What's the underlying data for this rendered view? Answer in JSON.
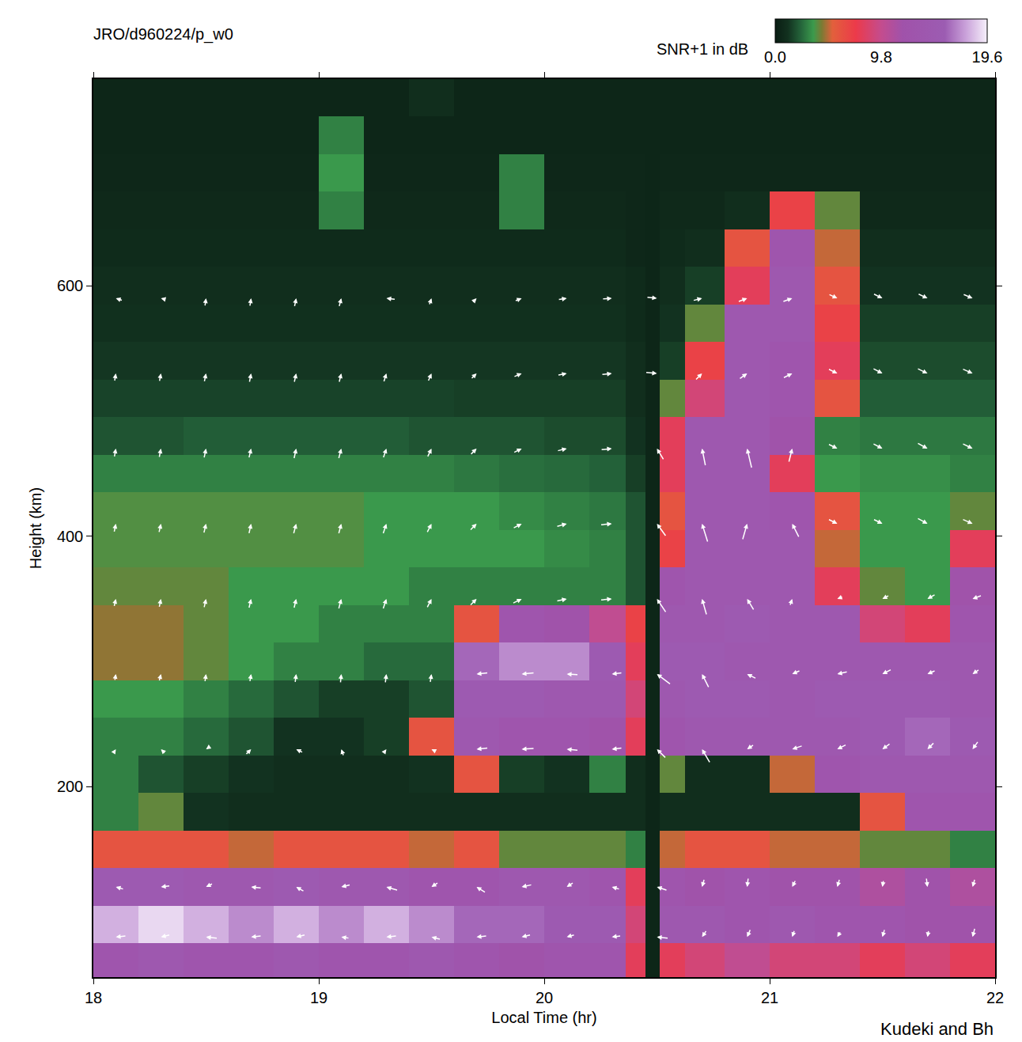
{
  "chart_data": {
    "type": "heatmap",
    "title": "JRO/d960224/p_w0",
    "x_label": "Local Time (hr)",
    "y_label": "Height (km)",
    "source": "Kudeki and Bh",
    "xlim": [
      18,
      22
    ],
    "xticks": [
      18,
      19,
      20,
      21,
      22
    ],
    "ylim": [
      48,
      765
    ],
    "yticks": [
      200,
      400,
      600
    ],
    "colorbar": {
      "title": "SNR+1 in dB",
      "range": [
        0,
        19.6
      ],
      "ticks": [
        {
          "value": 0,
          "label": "0.0"
        },
        9.8,
        19.6
      ]
    },
    "x": [
      18.1,
      18.3,
      18.5,
      18.7,
      18.9,
      19.1,
      19.3,
      19.5,
      19.7,
      19.9,
      20.1,
      20.3,
      20.42,
      20.475,
      20.55,
      20.7,
      20.9,
      21.1,
      21.3,
      21.5,
      21.7,
      21.9
    ],
    "y": [
      60,
      90,
      120,
      150,
      180,
      210,
      240,
      270,
      300,
      330,
      360,
      390,
      420,
      450,
      480,
      510,
      540,
      570,
      600,
      630,
      660,
      690,
      720,
      750
    ],
    "z": [
      [
        13,
        14,
        13,
        13,
        14,
        13,
        13,
        14,
        13,
        12,
        13,
        13,
        8,
        0.5,
        8,
        9,
        10,
        9,
        9,
        8,
        9,
        8
      ],
      [
        18,
        19,
        18,
        17,
        18,
        17,
        18,
        17,
        16,
        16,
        15,
        15,
        9,
        0.5,
        14,
        14,
        13,
        14,
        13,
        13,
        12,
        12
      ],
      [
        15,
        15,
        14,
        14,
        15,
        14,
        14,
        13,
        13,
        14,
        14,
        13,
        8,
        0.5,
        13,
        12,
        13,
        12,
        12,
        11,
        12,
        11
      ],
      [
        6,
        6,
        6,
        5,
        6,
        6,
        6,
        5,
        6,
        4,
        4,
        4,
        3,
        0.5,
        5,
        6,
        6,
        5,
        5,
        4,
        4,
        3
      ],
      [
        3,
        4,
        1.2,
        1,
        1,
        1,
        1,
        1,
        1,
        1,
        1,
        1,
        1,
        0.5,
        1,
        1,
        1,
        1,
        1,
        6,
        13,
        13
      ],
      [
        3,
        2,
        1.5,
        1.2,
        1,
        1,
        1,
        1.2,
        6,
        1.5,
        1.2,
        3,
        1,
        0.5,
        4,
        1,
        1,
        5,
        13,
        14,
        14,
        14
      ],
      [
        3,
        3,
        2.5,
        2,
        1.2,
        1.2,
        1.5,
        6,
        14,
        13,
        13,
        12,
        8,
        0.5,
        13,
        14,
        14,
        14,
        14,
        15,
        16,
        15
      ],
      [
        3.5,
        3.5,
        3,
        2.5,
        2,
        1.5,
        1.5,
        2,
        15,
        15,
        14,
        14,
        9,
        0.5,
        14,
        15,
        15,
        14,
        15,
        15,
        15,
        14
      ],
      [
        4.5,
        4.5,
        4,
        3.5,
        3,
        3,
        2.5,
        2.5,
        16,
        17,
        17,
        15,
        8,
        0.5,
        15,
        15,
        14,
        14,
        14,
        14,
        14,
        14
      ],
      [
        4.5,
        4.5,
        4,
        3.5,
        3.5,
        3,
        3,
        3,
        6,
        13,
        12,
        10,
        7,
        0.5,
        14,
        14,
        15,
        14,
        14,
        9,
        8,
        13
      ],
      [
        4,
        4,
        4,
        3.5,
        3.5,
        3.5,
        3.5,
        3,
        3,
        3,
        3,
        3,
        2,
        0.5,
        13,
        14,
        14,
        14,
        8,
        4,
        3.5,
        12
      ],
      [
        3.8,
        3.8,
        3.8,
        3.8,
        3.8,
        3.8,
        3.5,
        3.5,
        3.5,
        3.5,
        3.2,
        3,
        2,
        0.5,
        7,
        14,
        14,
        14,
        5,
        3.5,
        3.5,
        8
      ],
      [
        3.8,
        3.8,
        3.8,
        3.8,
        3.8,
        3.8,
        3.5,
        3.5,
        3.5,
        3.2,
        3,
        2.8,
        2,
        0.5,
        6,
        14,
        14,
        13,
        6,
        3.5,
        3.5,
        4
      ],
      [
        3,
        3,
        3,
        3,
        3,
        3,
        3,
        3,
        2.8,
        2.6,
        2.5,
        2.3,
        1.5,
        0.5,
        8,
        14,
        14,
        8,
        3.5,
        3.3,
        3.3,
        3
      ],
      [
        2,
        2,
        2.2,
        2.2,
        2.2,
        2.2,
        2.2,
        2,
        2,
        2,
        1.8,
        1.8,
        1.2,
        0.5,
        8,
        14,
        14,
        12,
        3,
        2.8,
        2.8,
        2.8
      ],
      [
        1.6,
        1.6,
        1.6,
        1.6,
        1.6,
        1.6,
        1.6,
        1.6,
        1.5,
        1.5,
        1.5,
        1.5,
        1,
        0.5,
        4,
        9,
        14,
        13,
        6,
        2.2,
        2.2,
        2.2
      ],
      [
        1.3,
        1.3,
        1.3,
        1.3,
        1.3,
        1.3,
        1.3,
        1.3,
        1.3,
        1.3,
        1.3,
        1.3,
        1,
        0.5,
        1.5,
        7,
        14,
        13,
        8,
        1.8,
        1.8,
        1.8
      ],
      [
        1.1,
        1.1,
        1.1,
        1.1,
        1.1,
        1.1,
        1.1,
        1.1,
        1.1,
        1.1,
        1.1,
        1.1,
        0.8,
        0.5,
        1.2,
        4,
        14,
        14,
        7,
        1.5,
        1.5,
        1.5
      ],
      [
        1,
        1,
        1,
        1,
        1,
        1,
        1,
        1,
        1,
        1,
        1,
        1,
        0.8,
        0.5,
        1,
        1.5,
        8,
        14,
        6,
        1.2,
        1.2,
        1.2
      ],
      [
        0.8,
        0.8,
        0.8,
        0.8,
        0.8,
        0.8,
        0.8,
        0.8,
        0.8,
        0.8,
        0.8,
        0.8,
        0.6,
        0.5,
        0.8,
        1,
        6,
        13,
        5,
        1,
        1,
        1
      ],
      [
        0.7,
        0.7,
        0.7,
        0.7,
        0.7,
        3,
        0.7,
        0.7,
        0.7,
        3,
        0.7,
        0.7,
        0.6,
        0.5,
        0.7,
        0.7,
        1,
        7,
        4,
        0.7,
        0.7,
        0.7
      ],
      [
        0.6,
        0.6,
        0.6,
        0.6,
        0.6,
        3.5,
        0.6,
        0.6,
        0.6,
        3,
        0.6,
        0.6,
        0.6,
        0.5,
        0.6,
        0.6,
        0.6,
        0.6,
        0.6,
        0.6,
        0.6,
        0.6
      ],
      [
        0.5,
        0.5,
        0.5,
        0.5,
        0.5,
        3,
        0.5,
        0.5,
        0.5,
        0.5,
        0.5,
        0.5,
        0.5,
        0.5,
        0.5,
        0.5,
        0.5,
        0.5,
        0.5,
        0.5,
        0.5,
        0.5
      ],
      [
        0.5,
        0.5,
        0.5,
        0.5,
        0.5,
        0.5,
        0.5,
        1,
        0.5,
        0.5,
        0.5,
        0.5,
        0.5,
        0.5,
        0.5,
        0.5,
        0.5,
        0.5,
        0.5,
        0.5,
        0.5,
        0.5
      ]
    ],
    "vectors": {
      "x": [
        18.1,
        18.3,
        18.5,
        18.7,
        18.9,
        19.1,
        19.3,
        19.5,
        19.7,
        19.9,
        20.1,
        20.3,
        20.5,
        20.7,
        20.9,
        21.1,
        21.3,
        21.5,
        21.7,
        21.9
      ],
      "y": [
        80,
        120,
        230,
        290,
        350,
        410,
        470,
        530,
        590
      ],
      "u": [
        [
          -45,
          -40,
          -50,
          -45,
          -40,
          -35,
          -45,
          -40,
          -45,
          -40,
          -35,
          -40,
          -50,
          -20,
          -15,
          -10,
          -15,
          -10,
          -5,
          -10
        ],
        [
          -35,
          -40,
          -30,
          -45,
          -35,
          -40,
          -50,
          -30,
          -40,
          -45,
          -30,
          -35,
          -45,
          -10,
          -5,
          -15,
          -10,
          -5,
          5,
          -10
        ],
        [
          10,
          -20,
          -15,
          25,
          -30,
          -10,
          15,
          -20,
          -50,
          -55,
          -50,
          -45,
          -40,
          -35,
          -30,
          -45,
          -40,
          -35,
          -30,
          -25
        ],
        [
          5,
          8,
          5,
          6,
          5,
          4,
          5,
          6,
          -50,
          -55,
          -50,
          -45,
          -60,
          -30,
          -40,
          -35,
          -45,
          -40,
          -35,
          -30
        ],
        [
          8,
          8,
          9,
          10,
          10,
          12,
          15,
          20,
          30,
          40,
          45,
          50,
          -40,
          -20,
          -30,
          10,
          -25,
          -30,
          -35,
          -40
        ],
        [
          8,
          9,
          10,
          10,
          12,
          12,
          15,
          20,
          30,
          38,
          45,
          50,
          -40,
          -25,
          20,
          -30,
          40,
          40,
          45,
          45
        ],
        [
          7,
          8,
          9,
          10,
          10,
          12,
          14,
          18,
          28,
          36,
          42,
          48,
          -30,
          -15,
          -20,
          15,
          40,
          42,
          45,
          45
        ],
        [
          6,
          7,
          8,
          8,
          9,
          10,
          12,
          15,
          25,
          35,
          40,
          45,
          50,
          30,
          35,
          40,
          40,
          42,
          45,
          45
        ],
        [
          -30,
          -20,
          5,
          6,
          8,
          10,
          -40,
          10,
          20,
          30,
          38,
          42,
          45,
          40,
          40,
          42,
          38,
          40,
          42,
          42
        ]
      ],
      "w": [
        [
          -5,
          -10,
          5,
          -5,
          -10,
          5,
          -5,
          10,
          -5,
          -10,
          -10,
          -5,
          5,
          -30,
          -35,
          -30,
          -25,
          -35,
          -30,
          -40
        ],
        [
          10,
          -5,
          -15,
          5,
          20,
          -10,
          15,
          -20,
          25,
          -10,
          -20,
          10,
          15,
          -35,
          -40,
          -30,
          -35,
          -30,
          -40,
          -35
        ],
        [
          15,
          20,
          -10,
          25,
          15,
          30,
          20,
          10,
          -5,
          -3,
          5,
          -5,
          40,
          60,
          -20,
          -15,
          -20,
          -25,
          -30,
          -35
        ],
        [
          30,
          32,
          35,
          35,
          38,
          40,
          40,
          38,
          -5,
          -5,
          3,
          -5,
          45,
          60,
          20,
          -15,
          -10,
          -20,
          -15,
          -20
        ],
        [
          35,
          38,
          40,
          42,
          42,
          45,
          45,
          40,
          30,
          20,
          10,
          5,
          60,
          70,
          50,
          30,
          -10,
          -15,
          -20,
          -15
        ],
        [
          38,
          40,
          42,
          45,
          45,
          45,
          45,
          40,
          30,
          20,
          12,
          5,
          55,
          80,
          70,
          60,
          -20,
          -20,
          -25,
          -20
        ],
        [
          38,
          40,
          42,
          42,
          45,
          45,
          42,
          38,
          28,
          18,
          10,
          5,
          50,
          75,
          85,
          60,
          -20,
          -22,
          -25,
          -22
        ],
        [
          35,
          36,
          38,
          40,
          40,
          40,
          38,
          35,
          25,
          15,
          8,
          5,
          -5,
          30,
          25,
          20,
          -20,
          -22,
          -22,
          -20
        ],
        [
          10,
          5,
          35,
          36,
          38,
          38,
          5,
          30,
          20,
          12,
          6,
          3,
          -5,
          10,
          15,
          15,
          -18,
          -20,
          -20,
          -18
        ]
      ]
    }
  }
}
